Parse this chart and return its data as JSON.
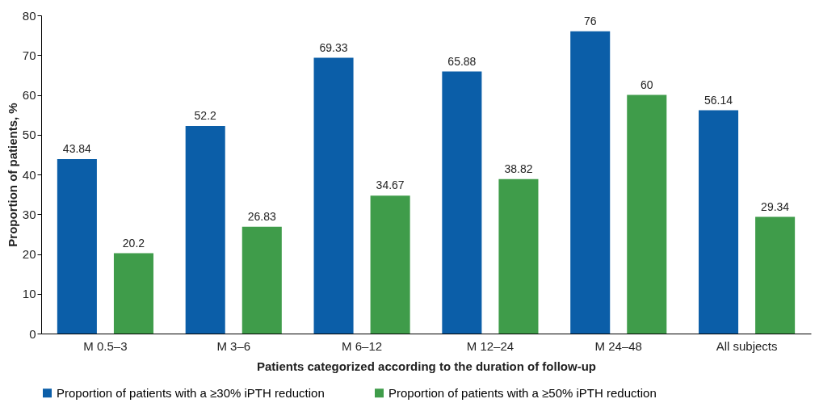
{
  "chart_data": {
    "type": "bar",
    "xlabel": "Patients categorized according to the duration of follow-up",
    "ylabel": "Proportion of patients, %",
    "categories": [
      "M 0.5–3",
      "M 3–6",
      "M 6–12",
      "M 12–24",
      "M 24–48",
      "All subjects"
    ],
    "series": [
      {
        "name": "Proportion of patients with a ≥30% iPTH reduction",
        "color": "#0b5ea8",
        "values": [
          43.84,
          52.2,
          69.33,
          65.88,
          76,
          56.14
        ]
      },
      {
        "name": "Proportion of patients with a ≥50% iPTH reduction",
        "color": "#3f9c4a",
        "values": [
          20.2,
          26.83,
          34.67,
          38.82,
          60,
          29.34
        ]
      }
    ],
    "ylim": [
      0,
      80
    ],
    "yticks": [
      0,
      10,
      20,
      30,
      40,
      50,
      60,
      70,
      80
    ],
    "grid": false,
    "legend": "bottom",
    "data_labels": true
  }
}
